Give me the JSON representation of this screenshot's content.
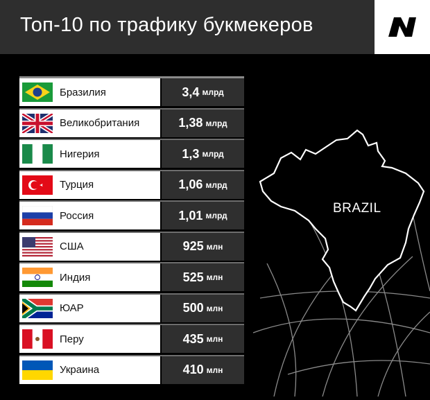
{
  "header": {
    "title": "Топ-10 по трафику букмекеров"
  },
  "map": {
    "label": "BRAZIL"
  },
  "rows": [
    {
      "country": "Бразилия",
      "value": "3,4",
      "unit": "млрд",
      "flag": "brazil-flag"
    },
    {
      "country": "Великобритания",
      "value": "1,38",
      "unit": "млрд",
      "flag": "uk-flag"
    },
    {
      "country": "Нигерия",
      "value": "1,3",
      "unit": "млрд",
      "flag": "nigeria-flag"
    },
    {
      "country": "Турция",
      "value": "1,06",
      "unit": "млрд",
      "flag": "turkey-flag"
    },
    {
      "country": "Россия",
      "value": "1,01",
      "unit": "млрд",
      "flag": "russia-flag"
    },
    {
      "country": "США",
      "value": "925",
      "unit": "млн",
      "flag": "usa-flag"
    },
    {
      "country": "Индия",
      "value": "525",
      "unit": "млн",
      "flag": "india-flag"
    },
    {
      "country": "ЮАР",
      "value": "500",
      "unit": "млн",
      "flag": "south-africa-flag"
    },
    {
      "country": "Перу",
      "value": "435",
      "unit": "млн",
      "flag": "peru-flag"
    },
    {
      "country": "Украина",
      "value": "410",
      "unit": "млн",
      "flag": "ukraine-flag"
    }
  ],
  "colors": {
    "background": "#000000",
    "header": "#2e2e2e",
    "value_cell": "#2f2f2f",
    "country_cell": "#ffffff"
  }
}
